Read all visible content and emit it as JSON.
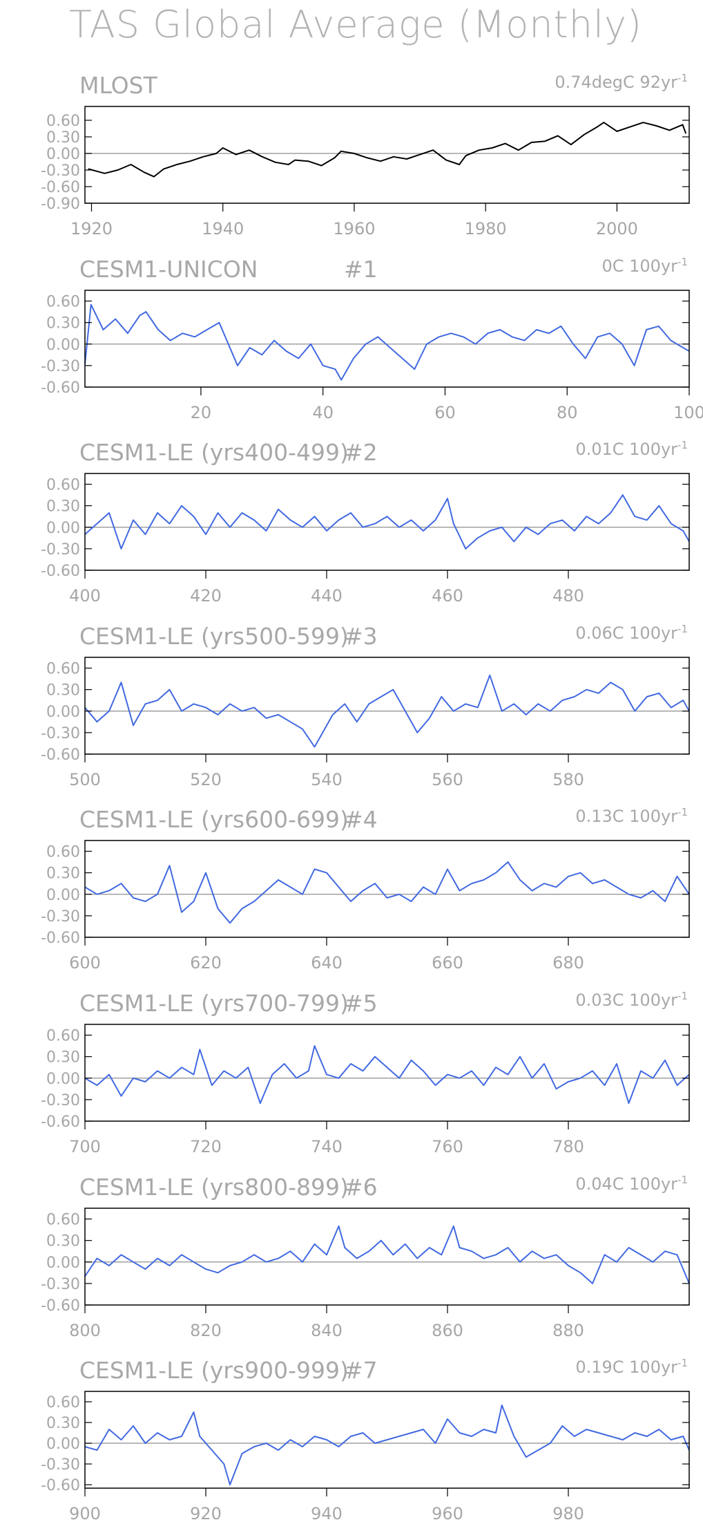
{
  "page": {
    "title": "TAS Global Average (Monthly)"
  },
  "colors": {
    "observed": "#000000",
    "model": "#4169e1",
    "axis": "#000000",
    "zero_line": "#a0a0a0",
    "text": "#a6a6a6"
  },
  "chart_data": [
    {
      "type": "line",
      "title": "MLOST",
      "run": "",
      "trend": "0.74degC 92yr",
      "trend_exp": "-1",
      "color": "black",
      "xlim": [
        1919,
        2011
      ],
      "ylim": [
        -0.9,
        0.85
      ],
      "xticks": [
        1920,
        1940,
        1960,
        1980,
        2000
      ],
      "xtick_labels": [
        "1920",
        "1940",
        "1960",
        "1980",
        "2000"
      ],
      "yticks": [
        0.6,
        0.3,
        0.0,
        -0.3,
        -0.6,
        -0.9
      ],
      "ytick_labels": [
        "0.60",
        "0.30",
        "0.00",
        "-0.30",
        "-0.60",
        "-0.90"
      ],
      "x": [
        1919.5,
        1922,
        1924,
        1926,
        1928,
        1929.5,
        1931,
        1933,
        1935,
        1937,
        1939,
        1940,
        1942,
        1944,
        1946,
        1948,
        1950,
        1951,
        1953,
        1955,
        1957,
        1958,
        1960,
        1962,
        1964,
        1966,
        1968,
        1970,
        1972,
        1974,
        1976,
        1977,
        1979,
        1981,
        1983,
        1985,
        1987,
        1989,
        1991,
        1993,
        1995,
        1997,
        1998,
        2000,
        2002,
        2004,
        2006,
        2008,
        2010,
        2010.5
      ],
      "y": [
        -0.28,
        -0.36,
        -0.3,
        -0.2,
        -0.34,
        -0.42,
        -0.28,
        -0.2,
        -0.14,
        -0.06,
        0.0,
        0.1,
        -0.02,
        0.06,
        -0.06,
        -0.16,
        -0.2,
        -0.12,
        -0.14,
        -0.22,
        -0.08,
        0.04,
        0.0,
        -0.08,
        -0.14,
        -0.06,
        -0.1,
        -0.02,
        0.06,
        -0.12,
        -0.2,
        -0.04,
        0.06,
        0.1,
        0.18,
        0.06,
        0.2,
        0.22,
        0.32,
        0.16,
        0.34,
        0.48,
        0.56,
        0.4,
        0.48,
        0.56,
        0.5,
        0.42,
        0.52,
        0.36
      ]
    },
    {
      "type": "line",
      "title": "CESM1-UNICON",
      "run": "#1",
      "trend": "0C 100yr",
      "trend_exp": "-1",
      "color": "royalblue",
      "xlim": [
        1,
        100
      ],
      "ylim": [
        -0.6,
        0.75
      ],
      "xticks": [
        20,
        40,
        60,
        80,
        100
      ],
      "xtick_labels": [
        "20",
        "40",
        "60",
        "80",
        "100"
      ],
      "yticks": [
        0.6,
        0.3,
        0.0,
        -0.3,
        -0.6
      ],
      "ytick_labels": [
        "0.60",
        "0.30",
        "0.00",
        "-0.30",
        "-0.60"
      ],
      "x": [
        1,
        2,
        4,
        6,
        8,
        10,
        11,
        13,
        15,
        17,
        19,
        21,
        23,
        25,
        26,
        28,
        30,
        32,
        34,
        36,
        38,
        40,
        42,
        43,
        45,
        47,
        49,
        51,
        53,
        55,
        57,
        59,
        61,
        63,
        65,
        67,
        69,
        71,
        73,
        75,
        77,
        79,
        81,
        83,
        85,
        87,
        89,
        91,
        93,
        95,
        97,
        99,
        100
      ],
      "y": [
        -0.28,
        0.55,
        0.2,
        0.35,
        0.15,
        0.4,
        0.45,
        0.2,
        0.05,
        0.15,
        0.1,
        0.2,
        0.3,
        -0.1,
        -0.3,
        -0.05,
        -0.15,
        0.05,
        -0.1,
        -0.2,
        0.0,
        -0.3,
        -0.35,
        -0.5,
        -0.2,
        0.0,
        0.1,
        -0.05,
        -0.2,
        -0.35,
        0.0,
        0.1,
        0.15,
        0.1,
        0.0,
        0.15,
        0.2,
        0.1,
        0.05,
        0.2,
        0.15,
        0.25,
        0.0,
        -0.2,
        0.1,
        0.15,
        0.0,
        -0.3,
        0.2,
        0.25,
        0.05,
        -0.05,
        -0.1
      ]
    },
    {
      "type": "line",
      "title": "CESM1-LE (yrs400-499)",
      "run": "#2",
      "trend": "0.01C 100yr",
      "trend_exp": "-1",
      "color": "royalblue",
      "xlim": [
        400,
        500
      ],
      "ylim": [
        -0.6,
        0.75
      ],
      "xticks": [
        400,
        420,
        440,
        460,
        480
      ],
      "xtick_labels": [
        "400",
        "420",
        "440",
        "460",
        "480"
      ],
      "yticks": [
        0.6,
        0.3,
        0.0,
        -0.3,
        -0.6
      ],
      "ytick_labels": [
        "0.60",
        "0.30",
        "0.00",
        "-0.30",
        "-0.60"
      ],
      "x": [
        400,
        402,
        404,
        406,
        408,
        410,
        412,
        414,
        416,
        418,
        420,
        422,
        424,
        426,
        428,
        430,
        432,
        434,
        436,
        438,
        440,
        442,
        444,
        446,
        448,
        450,
        452,
        454,
        456,
        458,
        460,
        461,
        463,
        465,
        467,
        469,
        471,
        473,
        475,
        477,
        479,
        481,
        483,
        485,
        487,
        489,
        491,
        493,
        495,
        497,
        499,
        500
      ],
      "y": [
        -0.1,
        0.05,
        0.2,
        -0.3,
        0.1,
        -0.1,
        0.2,
        0.05,
        0.3,
        0.15,
        -0.1,
        0.2,
        0.0,
        0.2,
        0.1,
        -0.05,
        0.25,
        0.1,
        0.0,
        0.15,
        -0.05,
        0.1,
        0.2,
        0.0,
        0.05,
        0.15,
        0.0,
        0.1,
        -0.05,
        0.1,
        0.4,
        0.05,
        -0.3,
        -0.15,
        -0.05,
        0.0,
        -0.2,
        0.0,
        -0.1,
        0.05,
        0.1,
        -0.05,
        0.15,
        0.05,
        0.2,
        0.45,
        0.15,
        0.1,
        0.3,
        0.05,
        -0.05,
        -0.2
      ]
    },
    {
      "type": "line",
      "title": "CESM1-LE (yrs500-599)",
      "run": "#3",
      "trend": "0.06C 100yr",
      "trend_exp": "-1",
      "color": "royalblue",
      "xlim": [
        500,
        600
      ],
      "ylim": [
        -0.6,
        0.75
      ],
      "xticks": [
        500,
        520,
        540,
        560,
        580
      ],
      "xtick_labels": [
        "500",
        "520",
        "540",
        "560",
        "580"
      ],
      "yticks": [
        0.6,
        0.3,
        0.0,
        -0.3,
        -0.6
      ],
      "ytick_labels": [
        "0.60",
        "0.30",
        "0.00",
        "-0.30",
        "-0.60"
      ],
      "x": [
        500,
        502,
        504,
        506,
        508,
        510,
        512,
        514,
        516,
        518,
        520,
        522,
        524,
        526,
        528,
        530,
        532,
        534,
        536,
        538,
        539,
        541,
        543,
        545,
        547,
        549,
        551,
        553,
        555,
        557,
        559,
        561,
        563,
        565,
        567,
        569,
        571,
        573,
        575,
        577,
        579,
        581,
        583,
        585,
        587,
        589,
        591,
        593,
        595,
        597,
        599,
        600
      ],
      "y": [
        0.05,
        -0.15,
        0.0,
        0.4,
        -0.2,
        0.1,
        0.15,
        0.3,
        0.0,
        0.1,
        0.05,
        -0.05,
        0.1,
        0.0,
        0.05,
        -0.1,
        -0.05,
        -0.15,
        -0.25,
        -0.5,
        -0.35,
        -0.05,
        0.1,
        -0.15,
        0.1,
        0.2,
        0.3,
        0.0,
        -0.3,
        -0.1,
        0.2,
        0.0,
        0.1,
        0.05,
        0.5,
        0.0,
        0.1,
        -0.05,
        0.1,
        0.0,
        0.15,
        0.2,
        0.3,
        0.25,
        0.4,
        0.3,
        0.0,
        0.2,
        0.25,
        0.05,
        0.15,
        0.0
      ]
    },
    {
      "type": "line",
      "title": "CESM1-LE (yrs600-699)",
      "run": "#4",
      "trend": "0.13C 100yr",
      "trend_exp": "-1",
      "color": "royalblue",
      "xlim": [
        600,
        700
      ],
      "ylim": [
        -0.6,
        0.75
      ],
      "xticks": [
        600,
        620,
        640,
        660,
        680
      ],
      "xtick_labels": [
        "600",
        "620",
        "640",
        "660",
        "680"
      ],
      "yticks": [
        0.6,
        0.3,
        0.0,
        -0.3,
        -0.6
      ],
      "ytick_labels": [
        "0.60",
        "0.30",
        "0.00",
        "-0.30",
        "-0.60"
      ],
      "x": [
        600,
        602,
        604,
        606,
        608,
        610,
        612,
        614,
        616,
        618,
        620,
        622,
        624,
        626,
        628,
        630,
        632,
        634,
        636,
        638,
        640,
        642,
        644,
        646,
        648,
        650,
        652,
        654,
        656,
        658,
        660,
        662,
        664,
        666,
        668,
        670,
        672,
        674,
        676,
        678,
        680,
        682,
        684,
        686,
        688,
        690,
        692,
        694,
        696,
        698,
        700
      ],
      "y": [
        0.1,
        0.0,
        0.05,
        0.15,
        -0.05,
        -0.1,
        0.0,
        0.4,
        -0.25,
        -0.1,
        0.3,
        -0.2,
        -0.4,
        -0.2,
        -0.1,
        0.05,
        0.2,
        0.1,
        0.0,
        0.35,
        0.3,
        0.1,
        -0.1,
        0.05,
        0.15,
        -0.05,
        0.0,
        -0.1,
        0.1,
        0.0,
        0.35,
        0.05,
        0.15,
        0.2,
        0.3,
        0.45,
        0.2,
        0.05,
        0.15,
        0.1,
        0.25,
        0.3,
        0.15,
        0.2,
        0.1,
        0.0,
        -0.05,
        0.05,
        -0.1,
        0.25,
        0.0
      ]
    },
    {
      "type": "line",
      "title": "CESM1-LE (yrs700-799)",
      "run": "#5",
      "trend": "0.03C 100yr",
      "trend_exp": "-1",
      "color": "royalblue",
      "xlim": [
        700,
        800
      ],
      "ylim": [
        -0.6,
        0.75
      ],
      "xticks": [
        700,
        720,
        740,
        760,
        780
      ],
      "xtick_labels": [
        "700",
        "720",
        "740",
        "760",
        "780"
      ],
      "yticks": [
        0.6,
        0.3,
        0.0,
        -0.3,
        -0.6
      ],
      "ytick_labels": [
        "0.60",
        "0.30",
        "0.00",
        "-0.30",
        "-0.60"
      ],
      "x": [
        700,
        702,
        704,
        706,
        708,
        710,
        712,
        714,
        716,
        718,
        719,
        721,
        723,
        725,
        727,
        729,
        731,
        733,
        735,
        737,
        738,
        740,
        742,
        744,
        746,
        748,
        750,
        752,
        754,
        756,
        758,
        760,
        762,
        764,
        766,
        768,
        770,
        772,
        774,
        776,
        778,
        780,
        782,
        784,
        786,
        788,
        790,
        792,
        794,
        796,
        798,
        800
      ],
      "y": [
        0.0,
        -0.1,
        0.05,
        -0.25,
        0.0,
        -0.05,
        0.1,
        0.0,
        0.15,
        0.05,
        0.4,
        -0.1,
        0.1,
        0.0,
        0.15,
        -0.35,
        0.05,
        0.2,
        0.0,
        0.1,
        0.45,
        0.05,
        0.0,
        0.2,
        0.1,
        0.3,
        0.15,
        0.0,
        0.25,
        0.1,
        -0.1,
        0.05,
        0.0,
        0.1,
        -0.1,
        0.15,
        0.05,
        0.3,
        0.0,
        0.2,
        -0.15,
        -0.05,
        0.0,
        0.1,
        -0.1,
        0.2,
        -0.35,
        0.1,
        0.0,
        0.25,
        -0.1,
        0.05
      ]
    },
    {
      "type": "line",
      "title": "CESM1-LE (yrs800-899)",
      "run": "#6",
      "trend": "0.04C 100yr",
      "trend_exp": "-1",
      "color": "royalblue",
      "xlim": [
        800,
        900
      ],
      "ylim": [
        -0.6,
        0.75
      ],
      "xticks": [
        800,
        820,
        840,
        860,
        880
      ],
      "xtick_labels": [
        "800",
        "820",
        "840",
        "860",
        "880"
      ],
      "yticks": [
        0.6,
        0.3,
        0.0,
        -0.3,
        -0.6
      ],
      "ytick_labels": [
        "0.60",
        "0.30",
        "0.00",
        "-0.30",
        "-0.60"
      ],
      "x": [
        800,
        802,
        804,
        806,
        808,
        810,
        812,
        814,
        816,
        818,
        820,
        822,
        824,
        826,
        828,
        830,
        832,
        834,
        836,
        838,
        840,
        842,
        843,
        845,
        847,
        849,
        851,
        853,
        855,
        857,
        859,
        861,
        862,
        864,
        866,
        868,
        870,
        872,
        874,
        876,
        878,
        880,
        882,
        884,
        886,
        888,
        890,
        892,
        894,
        896,
        898,
        900
      ],
      "y": [
        -0.2,
        0.05,
        -0.05,
        0.1,
        0.0,
        -0.1,
        0.05,
        -0.05,
        0.1,
        0.0,
        -0.1,
        -0.15,
        -0.05,
        0.0,
        0.1,
        0.0,
        0.05,
        0.15,
        0.0,
        0.25,
        0.1,
        0.5,
        0.2,
        0.05,
        0.15,
        0.3,
        0.1,
        0.25,
        0.05,
        0.2,
        0.1,
        0.5,
        0.2,
        0.15,
        0.05,
        0.1,
        0.2,
        0.0,
        0.15,
        0.05,
        0.1,
        -0.05,
        -0.15,
        -0.3,
        0.1,
        0.0,
        0.2,
        0.1,
        0.0,
        0.15,
        0.1,
        -0.3
      ]
    },
    {
      "type": "line",
      "title": "CESM1-LE (yrs900-999)",
      "run": "#7",
      "trend": "0.19C 100yr",
      "trend_exp": "-1",
      "color": "royalblue",
      "xlim": [
        900,
        1000
      ],
      "ylim": [
        -0.65,
        0.75
      ],
      "xticks": [
        900,
        920,
        940,
        960,
        980
      ],
      "xtick_labels": [
        "900",
        "920",
        "940",
        "960",
        "980"
      ],
      "yticks": [
        0.6,
        0.3,
        0.0,
        -0.3,
        -0.6
      ],
      "ytick_labels": [
        "0.60",
        "0.30",
        "0.00",
        "-0.30",
        "-0.60"
      ],
      "x": [
        900,
        902,
        904,
        906,
        908,
        910,
        912,
        914,
        916,
        918,
        919,
        921,
        923,
        924,
        926,
        928,
        930,
        932,
        934,
        936,
        938,
        940,
        942,
        944,
        946,
        948,
        950,
        952,
        954,
        956,
        958,
        960,
        962,
        964,
        966,
        968,
        969,
        971,
        973,
        975,
        977,
        979,
        981,
        983,
        985,
        987,
        989,
        991,
        993,
        995,
        997,
        999,
        1000
      ],
      "y": [
        -0.05,
        -0.1,
        0.2,
        0.05,
        0.25,
        0.0,
        0.15,
        0.05,
        0.1,
        0.45,
        0.1,
        -0.1,
        -0.3,
        -0.6,
        -0.15,
        -0.05,
        0.0,
        -0.1,
        0.05,
        -0.05,
        0.1,
        0.05,
        -0.05,
        0.1,
        0.15,
        0.0,
        0.05,
        0.1,
        0.15,
        0.2,
        0.0,
        0.35,
        0.15,
        0.1,
        0.2,
        0.15,
        0.55,
        0.1,
        -0.2,
        -0.1,
        0.0,
        0.25,
        0.1,
        0.2,
        0.15,
        0.1,
        0.05,
        0.15,
        0.1,
        0.2,
        0.05,
        0.1,
        -0.1
      ]
    }
  ]
}
